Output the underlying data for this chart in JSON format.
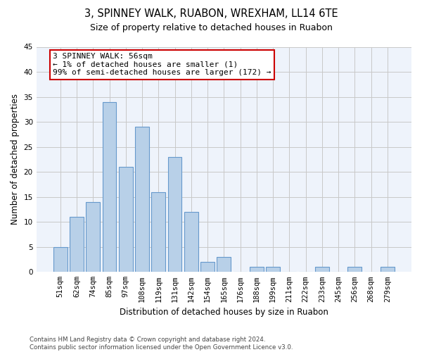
{
  "title": "3, SPINNEY WALK, RUABON, WREXHAM, LL14 6TE",
  "subtitle": "Size of property relative to detached houses in Ruabon",
  "xlabel": "Distribution of detached houses by size in Ruabon",
  "ylabel": "Number of detached properties",
  "categories": [
    "51sqm",
    "62sqm",
    "74sqm",
    "85sqm",
    "97sqm",
    "108sqm",
    "119sqm",
    "131sqm",
    "142sqm",
    "154sqm",
    "165sqm",
    "176sqm",
    "188sqm",
    "199sqm",
    "211sqm",
    "222sqm",
    "233sqm",
    "245sqm",
    "256sqm",
    "268sqm",
    "279sqm"
  ],
  "values": [
    5,
    11,
    14,
    34,
    21,
    29,
    16,
    23,
    12,
    2,
    3,
    0,
    1,
    1,
    0,
    0,
    1,
    0,
    1,
    0,
    1
  ],
  "bar_color": "#b8d0e8",
  "bar_edge_color": "#6699cc",
  "ylim": [
    0,
    45
  ],
  "yticks": [
    0,
    5,
    10,
    15,
    20,
    25,
    30,
    35,
    40,
    45
  ],
  "annotation_line1": "3 SPINNEY WALK: 56sqm",
  "annotation_line2": "← 1% of detached houses are smaller (1)",
  "annotation_line3": "99% of semi-detached houses are larger (172) →",
  "annotation_box_color": "#ffffff",
  "annotation_box_edge": "#cc0000",
  "footer_text": "Contains HM Land Registry data © Crown copyright and database right 2024.\nContains public sector information licensed under the Open Government Licence v3.0.",
  "bg_color": "#eef3fb",
  "grid_color": "#c8c8c8",
  "title_fontsize": 10.5,
  "subtitle_fontsize": 9,
  "tick_fontsize": 7.5,
  "ylabel_fontsize": 8.5,
  "xlabel_fontsize": 8.5,
  "footer_fontsize": 6.2,
  "annotation_fontsize": 8
}
